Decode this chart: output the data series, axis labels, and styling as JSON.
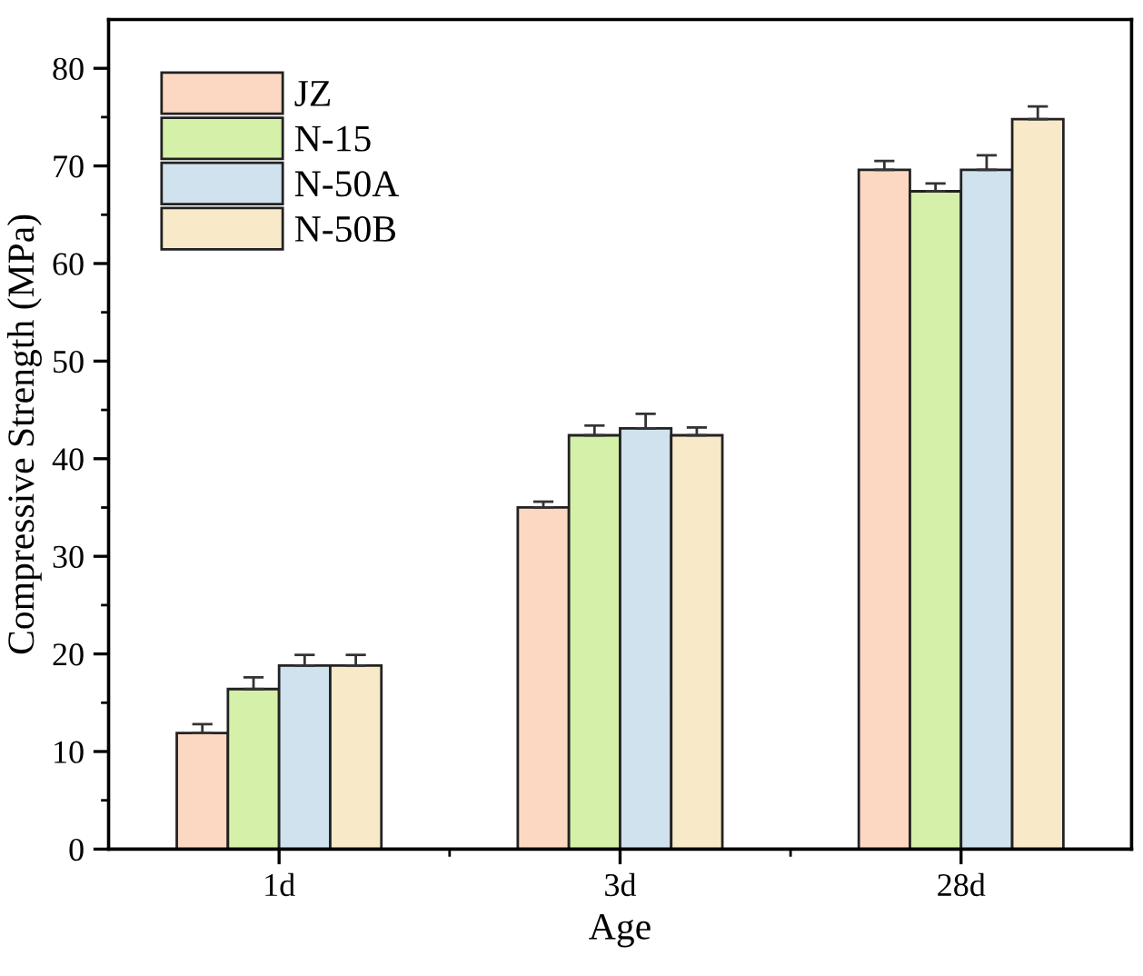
{
  "chart_data": {
    "type": "bar",
    "xlabel": "Age",
    "ylabel": "Compressive Strength (MPa)",
    "categories": [
      "1d",
      "3d",
      "28d"
    ],
    "series": [
      {
        "name": "JZ",
        "color": "#fcd8c2",
        "values": [
          11.9,
          35.0,
          69.6
        ],
        "errors": [
          0.9,
          0.6,
          0.9
        ]
      },
      {
        "name": "N-15",
        "color": "#d5f0a8",
        "values": [
          16.4,
          42.4,
          67.4
        ],
        "errors": [
          1.2,
          1.0,
          0.8
        ]
      },
      {
        "name": "N-50A",
        "color": "#cfe2ee",
        "values": [
          18.8,
          43.1,
          69.6
        ],
        "errors": [
          1.1,
          1.5,
          1.5
        ]
      },
      {
        "name": "N-50B",
        "color": "#f8e9c8",
        "values": [
          18.8,
          42.4,
          74.8
        ],
        "errors": [
          1.1,
          0.8,
          1.3
        ]
      }
    ],
    "ylim": [
      0,
      85
    ],
    "yticks": [
      0,
      10,
      20,
      30,
      40,
      50,
      60,
      70,
      80
    ],
    "grid": false,
    "legend": "top left"
  }
}
